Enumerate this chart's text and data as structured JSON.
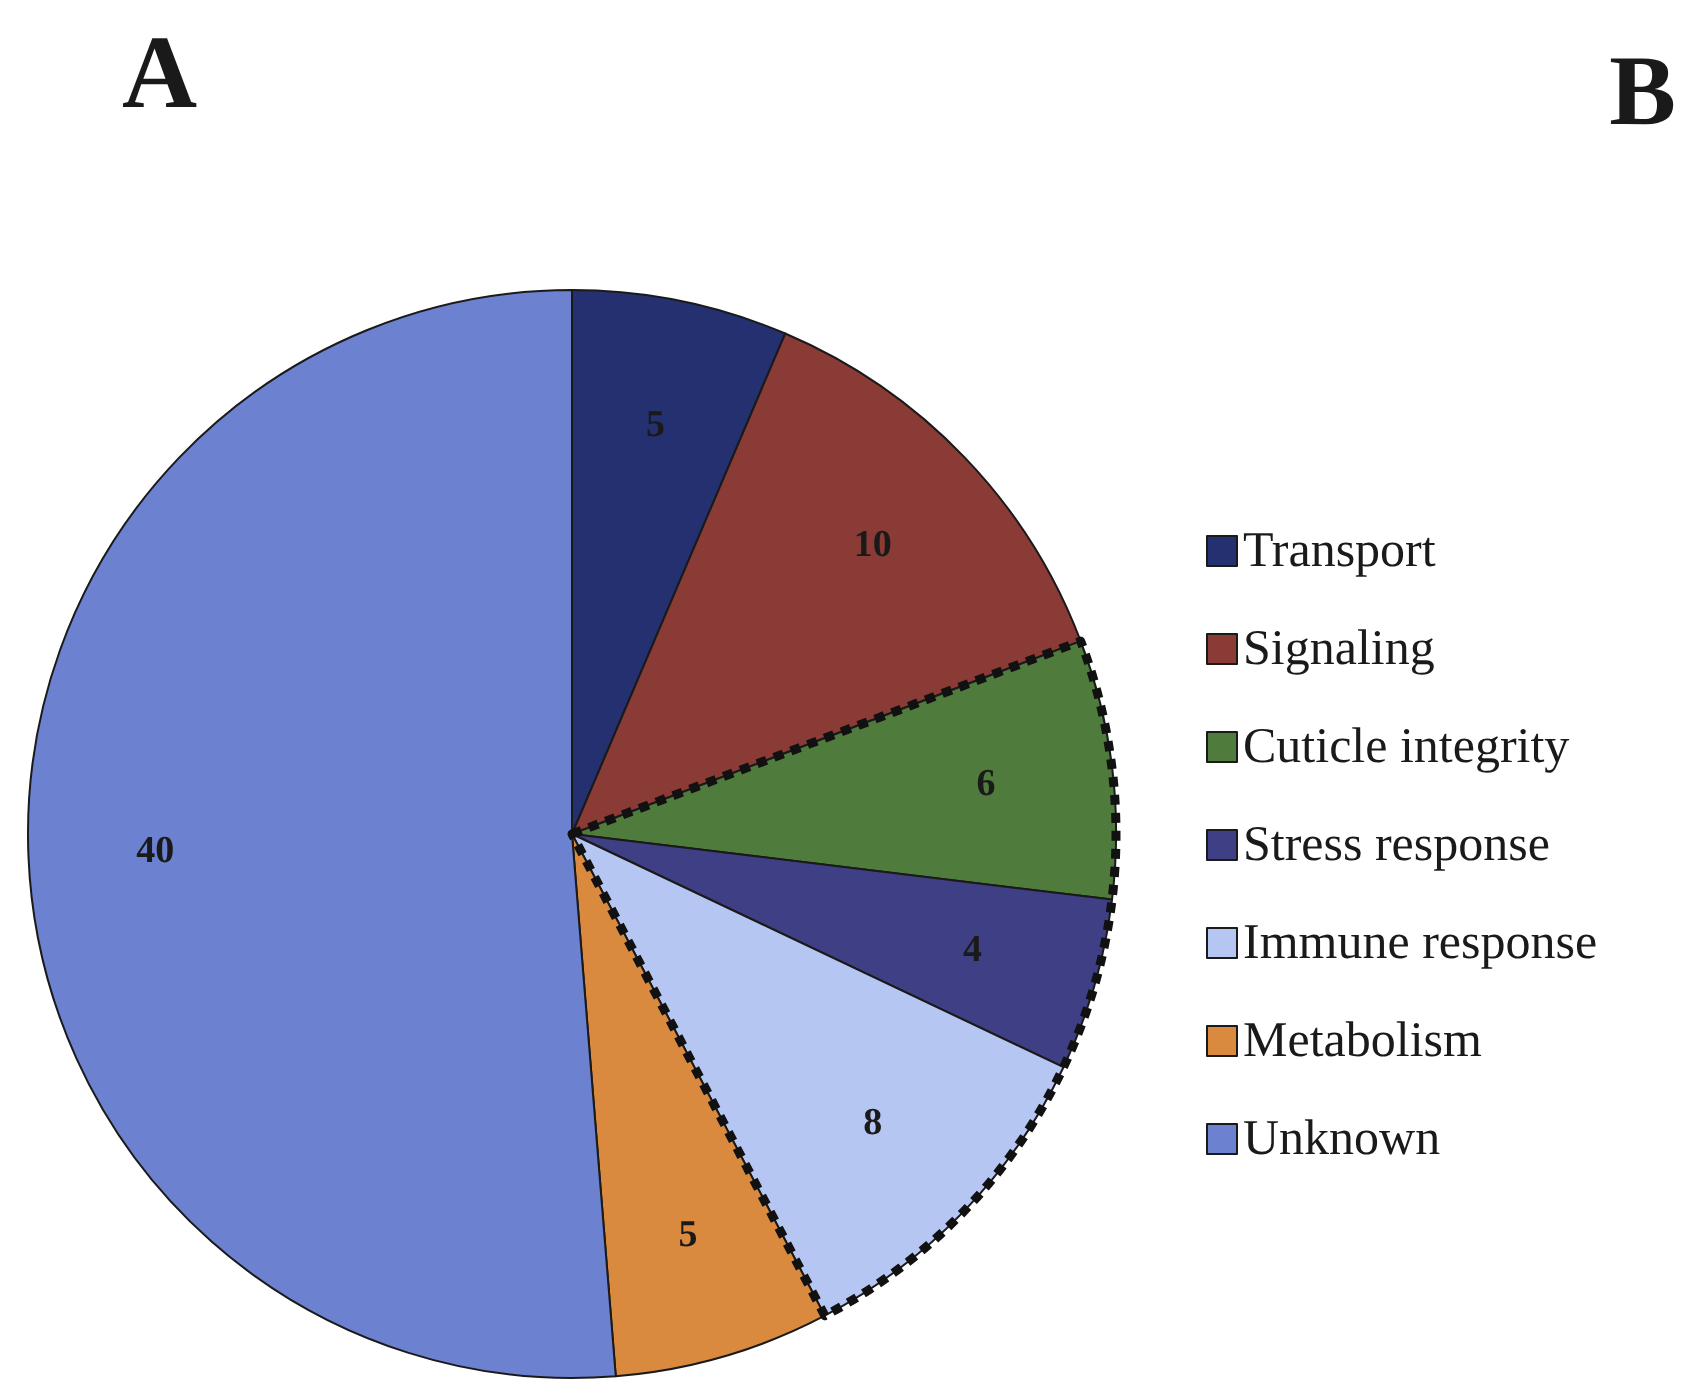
{
  "chart_data": {
    "type": "pie",
    "title": "A",
    "annotations": [
      "B"
    ],
    "categories": [
      "Transport",
      "Signaling",
      "Cuticle integrity",
      "Stress response",
      "Immune response",
      "Metabolism",
      "Unknown"
    ],
    "values": [
      5,
      10,
      6,
      4,
      8,
      5,
      40
    ],
    "colors": [
      "#243070",
      "#8b3b36",
      "#4f7b3c",
      "#3f3f86",
      "#b5c6f2",
      "#d98a3f",
      "#6c82d1"
    ],
    "data_labels": true,
    "legend": "right"
  }
}
